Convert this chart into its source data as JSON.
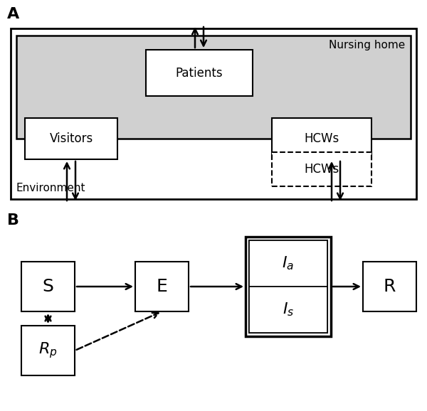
{
  "bg_color": "#ffffff",
  "gray_fill": "#d0d0d0",
  "panel_A_label": "A",
  "panel_B_label": "B",
  "nursing_home_label": "Nursing home",
  "environment_label": "Environment",
  "patients_label": "Patients",
  "visitors_label": "Visitors",
  "hcws_solid_label": "HCWs",
  "hcws_dashed_label": "HCWs",
  "s_label": "S",
  "e_label": "E",
  "r_label": "R"
}
